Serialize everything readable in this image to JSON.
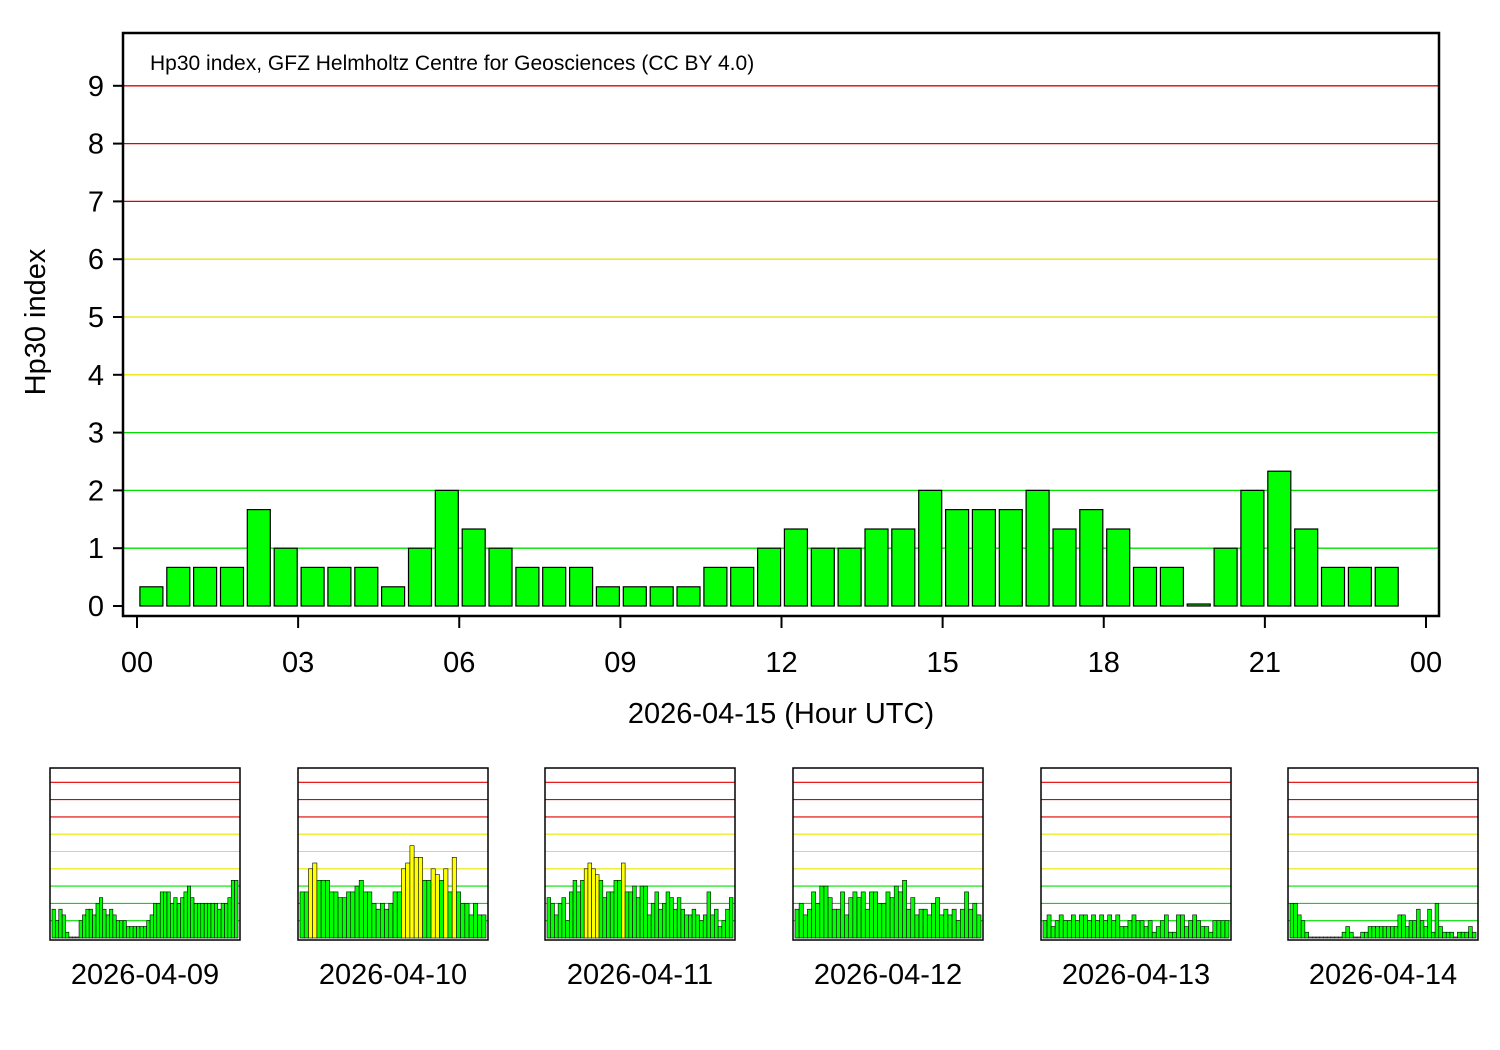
{
  "chart_data": {
    "type": "bar",
    "annotation": "Hp30 index, GFZ Helmholtz Centre for Geosciences (CC BY 4.0)",
    "xlabel": "2026-04-15 (Hour UTC)",
    "ylabel": "Hp30 index",
    "ylim": [
      0,
      9.9
    ],
    "yticks": [
      "0",
      "1",
      "2",
      "3",
      "4",
      "5",
      "6",
      "7",
      "8",
      "9"
    ],
    "xticks": [
      "00",
      "03",
      "06",
      "09",
      "12",
      "15",
      "18",
      "21",
      "00"
    ],
    "level_line_colors": {
      "1": "#00e000",
      "2": "#00e000",
      "3": "#00e000",
      "4": "#e8e800",
      "5": "#e8e800",
      "6": "#e8e800",
      "7": "#e00000",
      "8": "#e00000",
      "9": "#e00000"
    },
    "bar_colors": {
      "low": "#00ff00",
      "mid": "#ffff00",
      "high": "#ff0000"
    },
    "values": [
      0.333,
      0.667,
      0.667,
      0.667,
      1.667,
      1.0,
      0.667,
      0.667,
      0.667,
      0.333,
      1.0,
      2.0,
      1.333,
      1.0,
      0.667,
      0.667,
      0.667,
      0.333,
      0.333,
      0.333,
      0.333,
      0.667,
      0.667,
      1.0,
      1.333,
      1.0,
      1.0,
      1.333,
      1.333,
      2.0,
      1.667,
      1.667,
      1.667,
      2.0,
      1.333,
      1.667,
      1.333,
      0.667,
      0.667,
      0.0,
      1.0,
      2.0,
      2.333,
      1.333,
      0.667,
      0.667,
      0.667
    ],
    "previous_days": [
      {
        "date": "2026-04-09",
        "values": [
          1.667,
          1.0,
          1.667,
          1.333,
          0.333,
          0.0,
          0.0,
          0.0,
          1.0,
          1.333,
          1.667,
          1.667,
          1.333,
          2.0,
          2.333,
          1.667,
          1.333,
          1.667,
          1.333,
          1.0,
          1.0,
          1.0,
          0.667,
          0.667,
          0.667,
          0.667,
          0.667,
          0.667,
          1.0,
          1.333,
          2.0,
          2.0,
          2.667,
          2.667,
          2.667,
          2.0,
          2.333,
          2.0,
          2.333,
          2.667,
          3.0,
          2.333,
          2.0,
          2.0,
          2.0,
          2.0,
          2.0,
          2.0,
          2.0,
          1.667,
          2.0,
          2.0,
          2.333,
          3.333,
          3.333
        ]
      },
      {
        "date": "2026-04-10",
        "values": [
          2.667,
          2.667,
          4.0,
          4.333,
          3.333,
          3.333,
          3.333,
          2.667,
          2.667,
          2.333,
          2.333,
          2.667,
          2.667,
          3.0,
          3.333,
          2.667,
          2.667,
          2.0,
          1.667,
          2.0,
          1.667,
          2.0,
          2.667,
          2.667,
          4.0,
          4.333,
          5.333,
          4.667,
          4.667,
          3.333,
          3.333,
          4.0,
          3.667,
          3.333,
          4.0,
          2.667,
          4.667,
          2.667,
          2.0,
          2.0,
          1.333,
          2.0,
          1.333,
          1.333
        ]
      },
      {
        "date": "2026-04-11",
        "values": [
          2.333,
          2.0,
          1.333,
          2.0,
          2.333,
          1.0,
          2.667,
          3.333,
          2.667,
          3.333,
          4.0,
          4.333,
          4.0,
          3.667,
          3.333,
          2.333,
          2.667,
          2.667,
          3.333,
          3.333,
          4.333,
          2.667,
          2.667,
          3.0,
          2.333,
          3.0,
          3.0,
          1.333,
          2.0,
          2.667,
          1.667,
          2.0,
          2.667,
          2.333,
          1.667,
          2.333,
          1.667,
          1.333,
          1.333,
          1.667,
          1.333,
          1.0,
          1.333,
          2.667,
          1.333,
          1.667,
          0.667,
          1.0,
          1.667,
          2.333
        ]
      },
      {
        "date": "2026-04-12",
        "values": [
          1.667,
          2.0,
          1.333,
          1.667,
          2.667,
          2.0,
          3.0,
          3.0,
          2.333,
          1.667,
          1.667,
          2.667,
          1.333,
          2.333,
          2.667,
          2.333,
          2.667,
          1.667,
          2.667,
          2.667,
          2.0,
          2.0,
          2.667,
          2.333,
          3.0,
          2.667,
          3.333,
          1.667,
          2.333,
          1.333,
          1.667,
          1.667,
          1.333,
          2.0,
          2.333,
          1.333,
          1.667,
          1.333,
          1.667,
          1.0,
          1.667,
          2.667,
          1.667,
          2.0,
          1.333
        ]
      },
      {
        "date": "2026-04-13",
        "values": [
          1.0,
          1.333,
          0.667,
          1.0,
          1.333,
          1.0,
          1.0,
          1.333,
          1.0,
          1.333,
          1.333,
          1.0,
          1.333,
          1.0,
          1.333,
          1.0,
          1.333,
          1.0,
          1.333,
          0.667,
          0.667,
          1.0,
          1.333,
          1.0,
          1.0,
          0.667,
          1.0,
          0.333,
          0.667,
          1.0,
          1.333,
          0.333,
          0.333,
          1.333,
          1.333,
          0.667,
          1.0,
          1.333,
          1.0,
          0.667,
          0.667,
          0.333,
          1.0,
          1.0,
          1.0,
          1.0
        ]
      },
      {
        "date": "2026-04-14",
        "values": [
          2.0,
          2.0,
          1.333,
          1.0,
          0.333,
          0.0,
          0.0,
          0.0,
          0.0,
          0.0,
          0.0,
          0.0,
          0.0,
          0.0,
          0.333,
          0.667,
          0.333,
          0.0,
          0.0,
          0.333,
          0.333,
          0.667,
          0.667,
          0.667,
          0.667,
          0.667,
          0.667,
          0.667,
          0.667,
          1.333,
          1.333,
          0.667,
          1.0,
          1.0,
          1.667,
          1.0,
          0.667,
          1.667,
          0.333,
          2.0,
          0.667,
          0.333,
          0.333,
          0.333,
          0.0,
          0.333,
          0.333,
          0.333,
          0.667,
          0.333
        ]
      }
    ]
  }
}
